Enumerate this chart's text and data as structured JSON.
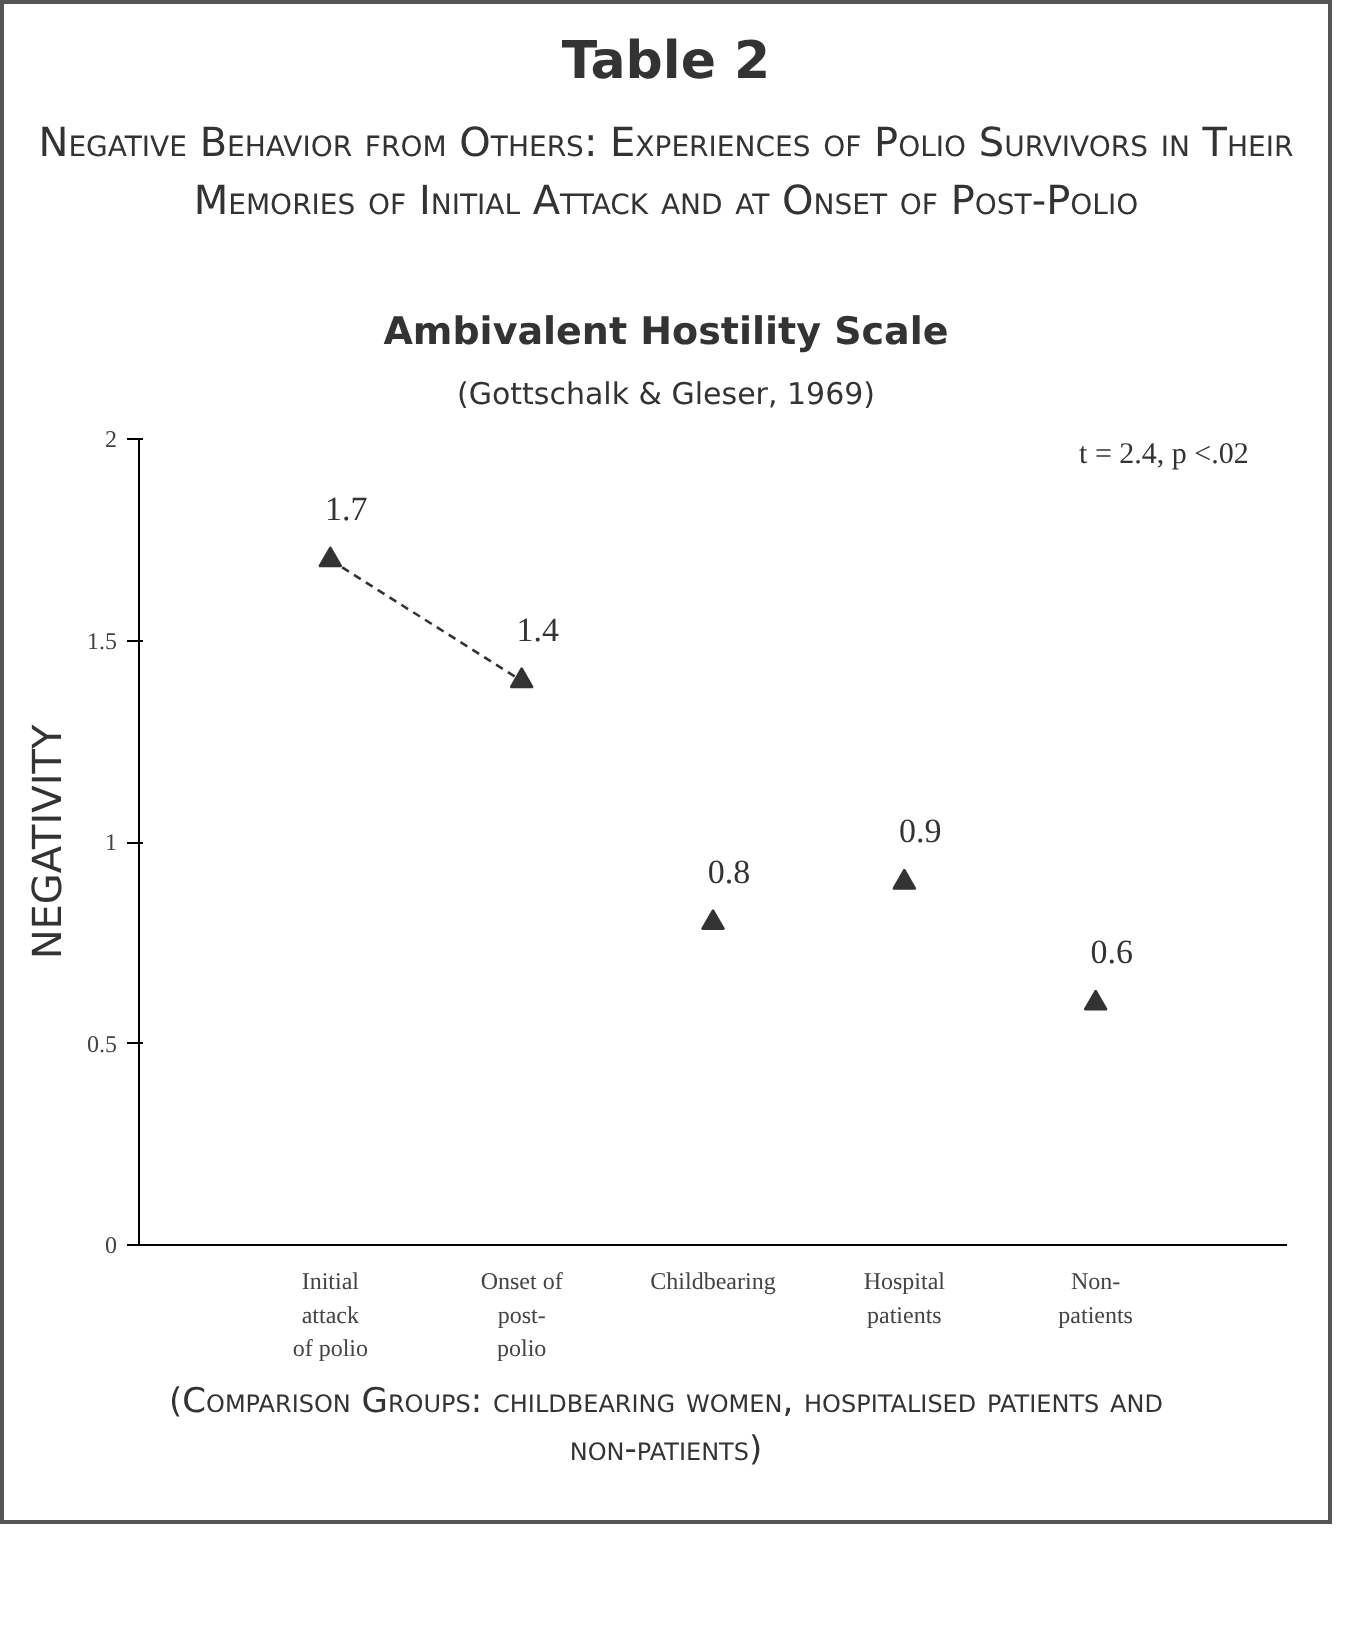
{
  "chart_data": {
    "type": "scatter",
    "title": "Table 2",
    "subtitle": "Negative Behavior from Others: Experiences of Polio Survivors in Their Memories of Initial Attack and at Onset of Post-Polio",
    "ylabel": "NEGATIVITY",
    "annotations": [
      "Ambivalent Hostility Scale",
      "(Gottschalk & Gleser, 1969)",
      "t = 2.4, p <.02",
      "(Comparison Groups: childbearing women, hospitalised patients and non-patients)"
    ],
    "categories": [
      "Initial attack of polio",
      "Onset of post-polio",
      "Childbearing",
      "Hospital patients",
      "Non-patients"
    ],
    "ylim": [
      0,
      2
    ],
    "yticks": [
      0,
      0.5,
      1,
      1.5,
      2
    ],
    "grid": false,
    "series": [
      {
        "type": "line",
        "color": "#333333",
        "line_style": "dashed",
        "marker": "none",
        "values": [
          1.7,
          1.4,
          null,
          null,
          null
        ]
      },
      {
        "color": "#333333",
        "marker": "triangle",
        "values": [
          1.7,
          1.4,
          0.8,
          0.9,
          0.6
        ],
        "value_labels": [
          "1.7",
          "1.4",
          "0.8",
          "0.9",
          "0.6"
        ]
      }
    ]
  }
}
